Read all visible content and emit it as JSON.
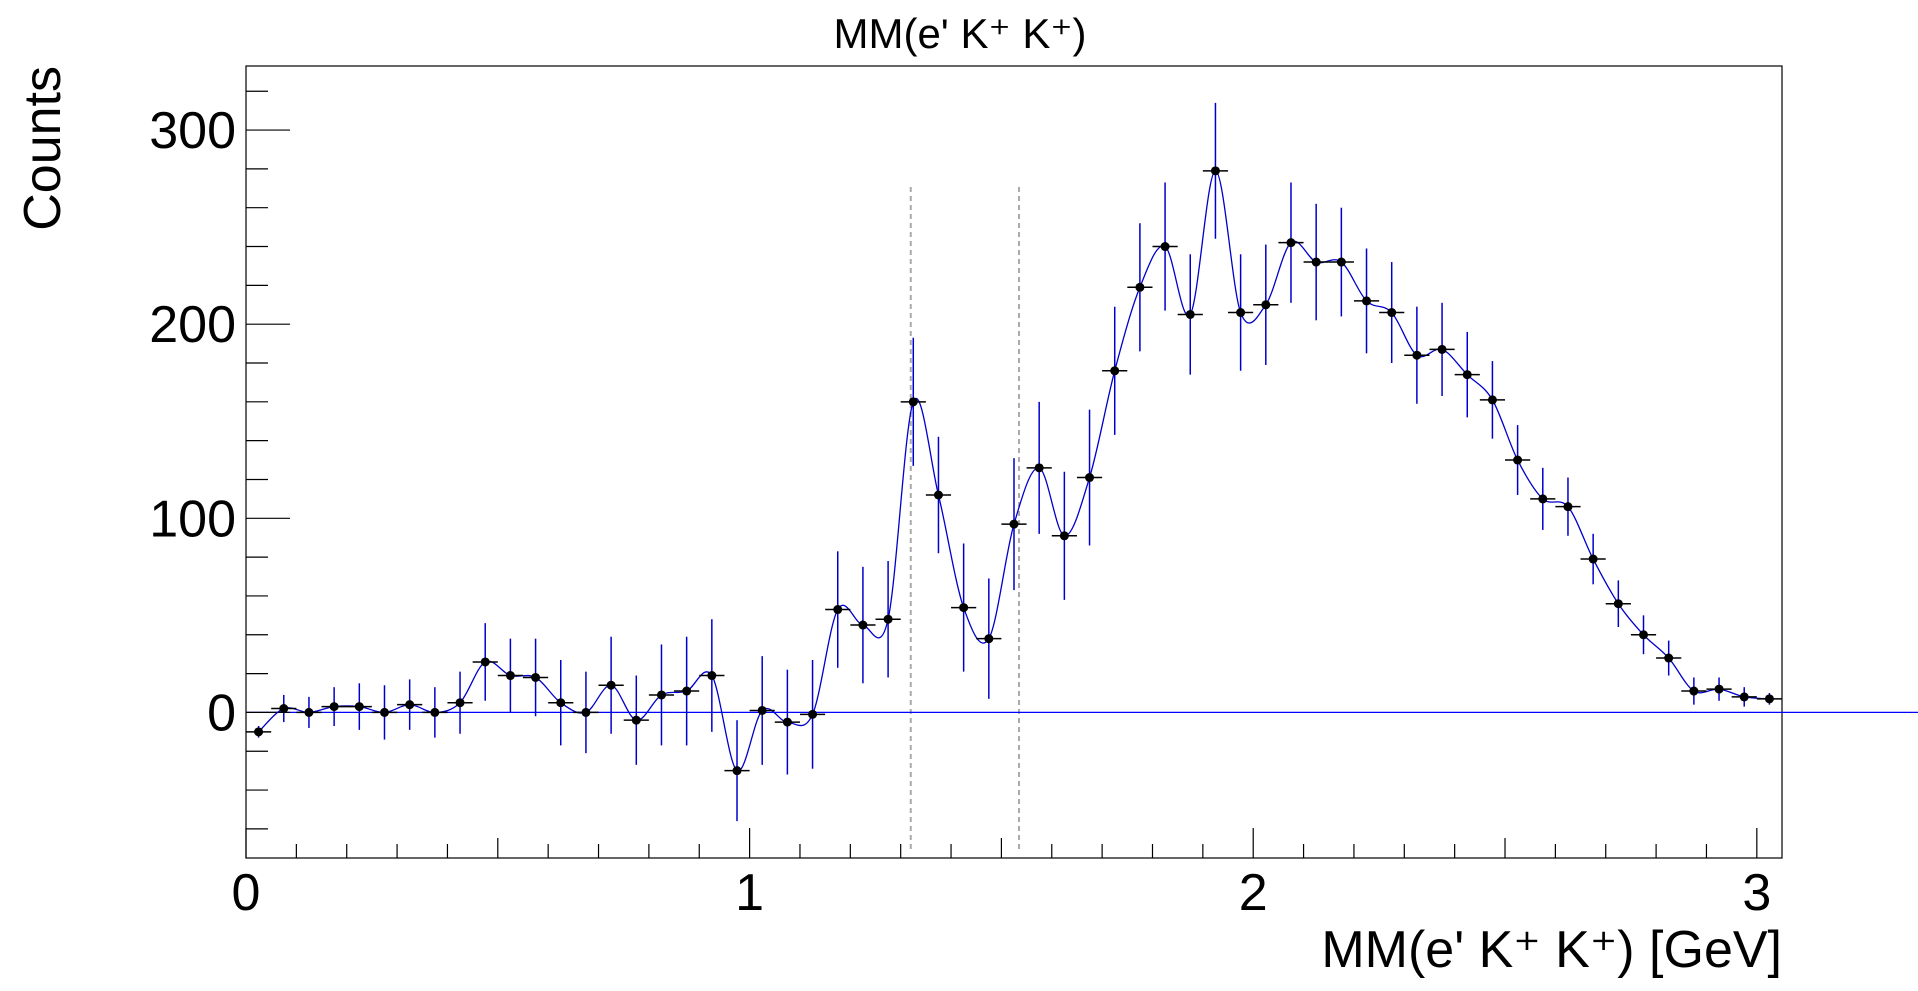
{
  "chart_data": {
    "type": "scatter",
    "title": "MM(e' K⁺ K⁺)",
    "xlabel": "MM(e' K⁺ K⁺) [GeV]",
    "ylabel": "Counts",
    "xlim": [
      0,
      3.05
    ],
    "ylim": [
      -75,
      333
    ],
    "x_ticks": [
      0,
      1,
      2,
      3
    ],
    "x_tick_labels": [
      "0",
      "1",
      "2",
      "3"
    ],
    "y_ticks": [
      0,
      100,
      200,
      300
    ],
    "y_tick_labels": [
      "0",
      "100",
      "200",
      "300"
    ],
    "bin_half_width": 0.025,
    "reference_lines": [
      1.32,
      1.535
    ],
    "grid": false,
    "legend": "none",
    "colors": {
      "points": "#000000",
      "error_bars": "#0000cc",
      "curve": "#0000cc",
      "zero_line": "#0000ff",
      "reference": "#aaaaaa"
    },
    "series": [
      {
        "x": [
          0.025,
          0.075,
          0.125,
          0.175,
          0.225,
          0.275,
          0.325,
          0.375,
          0.425,
          0.475,
          0.525,
          0.575,
          0.625,
          0.675,
          0.725,
          0.775,
          0.825,
          0.875,
          0.925,
          0.975,
          1.025,
          1.075,
          1.125,
          1.175,
          1.225,
          1.275,
          1.325,
          1.375,
          1.425,
          1.475,
          1.525,
          1.575,
          1.625,
          1.675,
          1.725,
          1.775,
          1.825,
          1.875,
          1.925,
          1.975,
          2.025,
          2.075,
          2.125,
          2.175,
          2.225,
          2.275,
          2.325,
          2.375,
          2.425,
          2.475,
          2.525,
          2.575,
          2.625,
          2.675,
          2.725,
          2.775,
          2.825,
          2.875,
          2.925,
          2.975,
          3.025
        ],
        "y": [
          -10,
          2,
          0,
          3,
          3,
          0,
          4,
          0,
          5,
          26,
          19,
          18,
          5,
          0,
          14,
          -4,
          9,
          11,
          19,
          -30,
          1,
          -5,
          -1,
          53,
          45,
          48,
          160,
          112,
          54,
          38,
          97,
          126,
          91,
          121,
          176,
          219,
          240,
          205,
          279,
          206,
          210,
          242,
          232,
          232,
          212,
          206,
          184,
          187,
          174,
          161,
          130,
          110,
          106,
          79,
          56,
          40,
          28,
          11,
          12,
          8,
          7
        ],
        "err": [
          3,
          7,
          8,
          10,
          12,
          14,
          13,
          13,
          16,
          20,
          19,
          20,
          22,
          21,
          25,
          23,
          26,
          28,
          29,
          26,
          28,
          27,
          28,
          30,
          30,
          30,
          33,
          30,
          33,
          31,
          34,
          34,
          33,
          35,
          33,
          33,
          33,
          31,
          35,
          30,
          31,
          31,
          30,
          28,
          27,
          26,
          25,
          24,
          22,
          20,
          18,
          16,
          15,
          13,
          12,
          10,
          9,
          7,
          6,
          5,
          3
        ]
      }
    ]
  }
}
